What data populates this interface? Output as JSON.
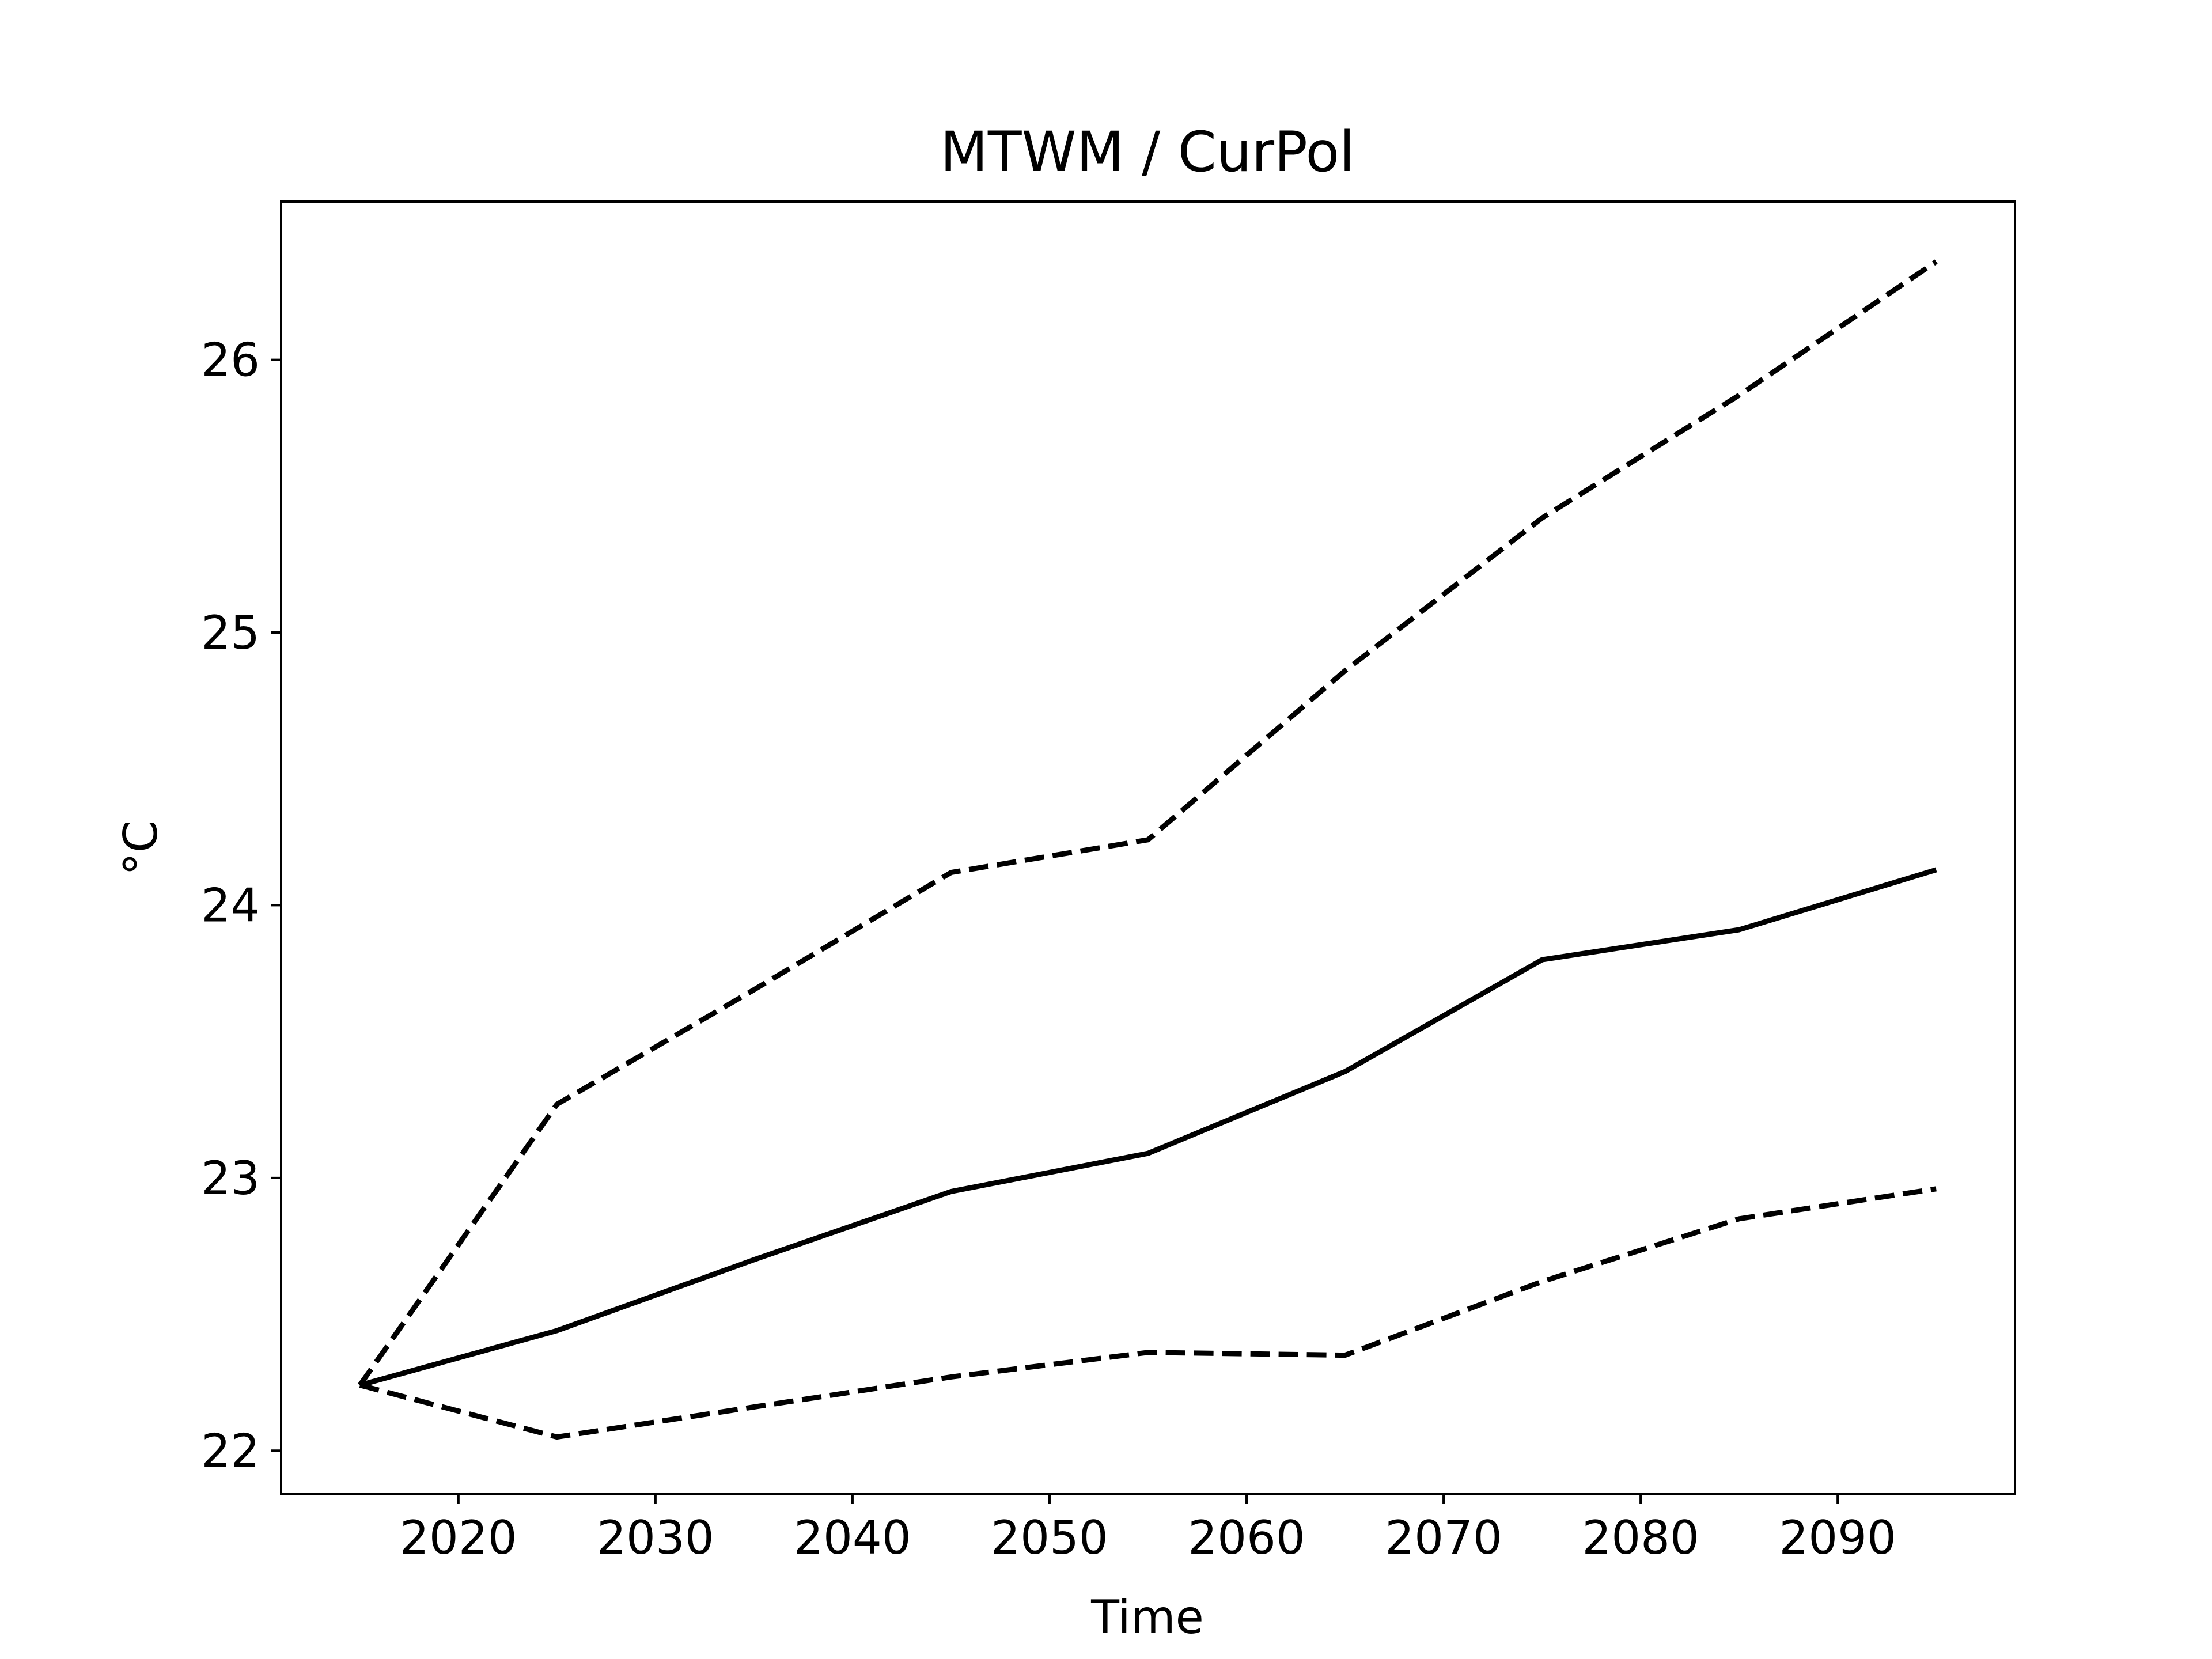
{
  "chart_data": {
    "type": "line",
    "title": "MTWM / CurPol",
    "xlabel": "Time",
    "ylabel": "°C",
    "xlim": [
      2011,
      2099
    ],
    "ylim": [
      21.84,
      26.58
    ],
    "xticks": [
      2020,
      2030,
      2040,
      2050,
      2060,
      2070,
      2080,
      2090
    ],
    "yticks": [
      22,
      23,
      24,
      25,
      26
    ],
    "grid": false,
    "legend": "none",
    "line_color": "#000000",
    "series": [
      {
        "style": "solid",
        "x": [
          2015,
          2025,
          2035,
          2045,
          2055,
          2065,
          2075,
          2085,
          2095
        ],
        "y": [
          22.24,
          22.44,
          22.7,
          22.95,
          23.09,
          23.39,
          23.8,
          23.91,
          24.13
        ]
      },
      {
        "style": "dashed",
        "x": [
          2015,
          2025,
          2035,
          2045,
          2055,
          2065,
          2075,
          2085,
          2095
        ],
        "y": [
          22.24,
          23.27,
          23.69,
          24.12,
          24.24,
          24.86,
          25.42,
          25.87,
          26.36
        ]
      },
      {
        "style": "dashed",
        "x": [
          2015,
          2025,
          2035,
          2045,
          2055,
          2065,
          2075,
          2085,
          2095
        ],
        "y": [
          22.24,
          22.05,
          22.16,
          22.27,
          22.36,
          22.35,
          22.62,
          22.85,
          22.96
        ]
      }
    ]
  }
}
